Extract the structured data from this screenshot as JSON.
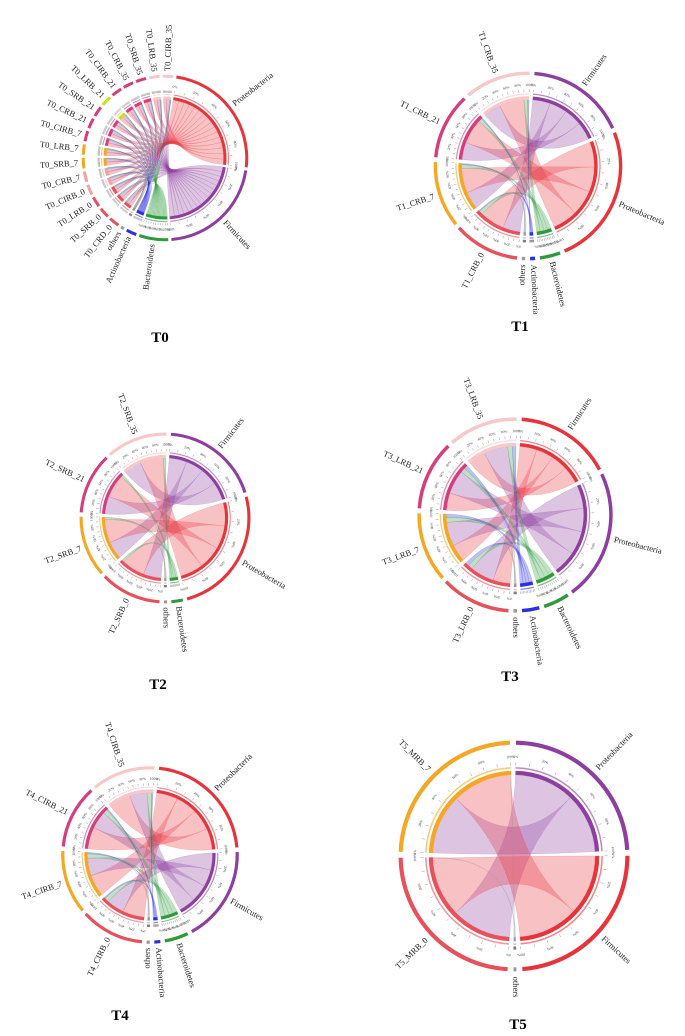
{
  "panels": [
    {
      "title": "T0",
      "taxa": [
        {
          "name": "Proteobacteria",
          "value": 30,
          "color": "#e8333a"
        },
        {
          "name": "Firmicutes",
          "value": 26,
          "color": "#8e3ea0"
        },
        {
          "name": "Bacteroidetes",
          "value": 7,
          "color": "#2e9a3a"
        },
        {
          "name": "Actinobacteria",
          "value": 2.5,
          "color": "#2a2fe0"
        },
        {
          "name": "others",
          "value": 0.8,
          "color": "#999999"
        }
      ],
      "samples": [
        {
          "name": "T0_CRD_0",
          "value": 2.5,
          "color": "#e8505a"
        },
        {
          "name": "T0_SRB_0",
          "value": 2.5,
          "color": "#e8505a"
        },
        {
          "name": "T0_LRB_0",
          "value": 2.5,
          "color": "#e8505a"
        },
        {
          "name": "T0_CIRB_0",
          "value": 2.5,
          "color": "#f5a0a0"
        },
        {
          "name": "T0_CRB_7",
          "value": 2.5,
          "color": "#f5a0a0"
        },
        {
          "name": "T0_SRB_7",
          "value": 2.5,
          "color": "#f5a623"
        },
        {
          "name": "T0_LRB_7",
          "value": 2.5,
          "color": "#f5a623"
        },
        {
          "name": "T0_CIRB_7",
          "value": 2.5,
          "color": "#d63d7c"
        },
        {
          "name": "T0_CRB_21",
          "value": 2.5,
          "color": "#d63d7c"
        },
        {
          "name": "T0_SRB_21",
          "value": 2.5,
          "color": "#d63d7c"
        },
        {
          "name": "T0_LRB_21",
          "value": 2.5,
          "color": "#c8e020"
        },
        {
          "name": "T0_CIRB_21",
          "value": 2.5,
          "color": "#d63d7c"
        },
        {
          "name": "T0_CRB_35",
          "value": 2.5,
          "color": "#d63d7c"
        },
        {
          "name": "T0_SRB_35",
          "value": 2.5,
          "color": "#d63d7c"
        },
        {
          "name": "T0_LRB_35",
          "value": 2.5,
          "color": "#f8c8c8"
        },
        {
          "name": "T0_CIRB_35",
          "value": 2.5,
          "color": "#f8c8c8"
        }
      ]
    },
    {
      "title": "T1",
      "taxa": [
        {
          "name": "Firmicutes",
          "value": 24,
          "color": "#8e3ea0"
        },
        {
          "name": "Proteobacteria",
          "value": 34,
          "color": "#e8333a"
        },
        {
          "name": "Bacteroidetes",
          "value": 5,
          "color": "#2e9a3a"
        },
        {
          "name": "Actinobacteria",
          "value": 1.2,
          "color": "#2a2fe0"
        },
        {
          "name": "others",
          "value": 0.8,
          "color": "#999999"
        }
      ],
      "samples": [
        {
          "name": "T1_CRB_0",
          "value": 16,
          "color": "#e8505a"
        },
        {
          "name": "T1_CRB_7",
          "value": 16,
          "color": "#f5a623"
        },
        {
          "name": "T1_CRB_21",
          "value": 16,
          "color": "#d63d7c"
        },
        {
          "name": "T1_CRB_35",
          "value": 16,
          "color": "#f8c8c8"
        }
      ]
    },
    {
      "title": "T2",
      "taxa": [
        {
          "name": "Firmicutes",
          "value": 26,
          "color": "#8e3ea0"
        },
        {
          "name": "Proteobacteria",
          "value": 34,
          "color": "#e8333a"
        },
        {
          "name": "Bacteroidetes",
          "value": 3,
          "color": "#2e9a3a"
        },
        {
          "name": "others",
          "value": 0.8,
          "color": "#999999"
        }
      ],
      "samples": [
        {
          "name": "T2_SRB_0",
          "value": 16,
          "color": "#e8505a"
        },
        {
          "name": "T2_SRB_7",
          "value": 16,
          "color": "#f5a623"
        },
        {
          "name": "T2_SRB_21",
          "value": 16,
          "color": "#d63d7c"
        },
        {
          "name": "T2_SRB_35",
          "value": 16,
          "color": "#f8c8c8"
        }
      ]
    },
    {
      "title": "T3",
      "taxa": [
        {
          "name": "Firmicutes",
          "value": 22,
          "color": "#e8333a"
        },
        {
          "name": "Proteobacteria",
          "value": 30,
          "color": "#8e3ea0"
        },
        {
          "name": "Bacteroidetes",
          "value": 6,
          "color": "#2e9a3a"
        },
        {
          "name": "Actinobacteria",
          "value": 4,
          "color": "#2a2fe0"
        },
        {
          "name": "others",
          "value": 0.8,
          "color": "#999999"
        }
      ],
      "samples": [
        {
          "name": "T3_LRB_0",
          "value": 16,
          "color": "#e8505a"
        },
        {
          "name": "T3_LRB_7",
          "value": 16,
          "color": "#f5a623"
        },
        {
          "name": "T3_LRB_21",
          "value": 16,
          "color": "#d63d7c"
        },
        {
          "name": "T3_LRB_35",
          "value": 16,
          "color": "#f8c8c8"
        }
      ]
    },
    {
      "title": "T4",
      "taxa": [
        {
          "name": "Proteobacteria",
          "value": 30,
          "color": "#e8333a"
        },
        {
          "name": "Firmicutes",
          "value": 24,
          "color": "#8e3ea0"
        },
        {
          "name": "Bacteroidetes",
          "value": 6,
          "color": "#2e9a3a"
        },
        {
          "name": "Actinobacteria",
          "value": 1.5,
          "color": "#2a2fe0"
        },
        {
          "name": "others",
          "value": 0.8,
          "color": "#999999"
        }
      ],
      "samples": [
        {
          "name": "T4_CIRB_0",
          "value": 16,
          "color": "#e8505a"
        },
        {
          "name": "T4_CIRB_7",
          "value": 16,
          "color": "#f5a623"
        },
        {
          "name": "T4_CIRB_21",
          "value": 16,
          "color": "#d63d7c"
        },
        {
          "name": "T4_CIRB_35",
          "value": 16,
          "color": "#f8c8c8"
        }
      ]
    },
    {
      "title": "T5",
      "taxa": [
        {
          "name": "Proteobacteria",
          "value": 30,
          "color": "#8e3ea0"
        },
        {
          "name": "Firmicutes",
          "value": 30,
          "color": "#e8333a"
        },
        {
          "name": "others",
          "value": 0.5,
          "color": "#999999"
        }
      ],
      "samples": [
        {
          "name": "T5_MRB_0",
          "value": 30,
          "color": "#e8505a"
        },
        {
          "name": "T5_MRB_7",
          "value": 30,
          "color": "#f5a623"
        }
      ]
    }
  ],
  "tick_labels": [
    "0%",
    "10%",
    "20%",
    "30%",
    "40%",
    "50%",
    "60%",
    "70%",
    "80%",
    "90%",
    "100%"
  ]
}
